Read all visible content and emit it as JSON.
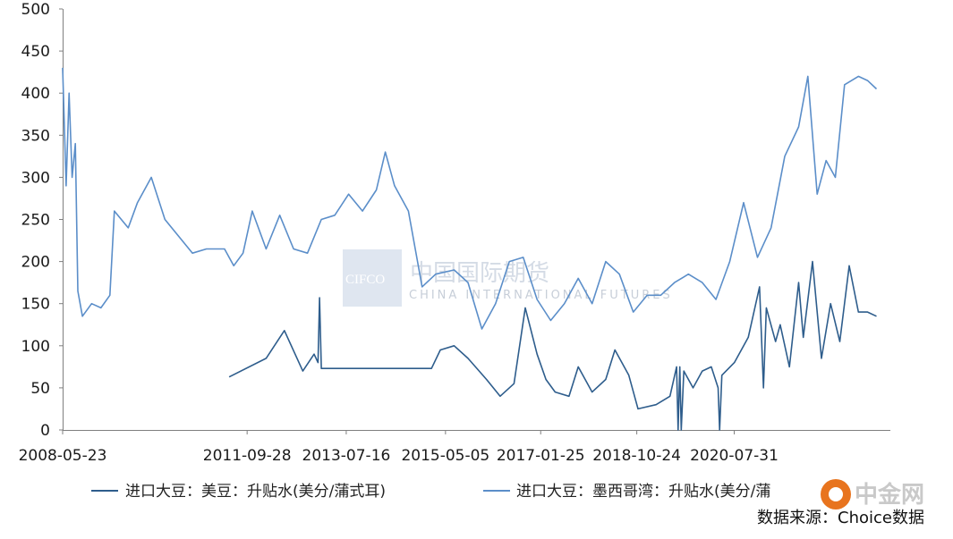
{
  "chart_data": {
    "type": "line",
    "x_tick_labels": [
      "2008-05-23",
      "2011-09-28",
      "2013-07-16",
      "2015-05-05",
      "2017-01-25",
      "2018-10-24",
      "2020-07-31"
    ],
    "y_tick_labels": [
      "0",
      "50",
      "100",
      "150",
      "200",
      "250",
      "300",
      "350",
      "400",
      "450",
      "500"
    ],
    "ylim": [
      0,
      500
    ],
    "xlim": [
      "2008-05-23",
      "2023-06-01"
    ],
    "grid": false,
    "legend_position": "bottom",
    "series": [
      {
        "name": "进口大豆：美豆：升贴水(美分/蒲式耳)",
        "color": "#2e5d8c",
        "points": [
          [
            "2011-06-01",
            63
          ],
          [
            "2012-02-01",
            85
          ],
          [
            "2012-06-01",
            118
          ],
          [
            "2012-10-01",
            70
          ],
          [
            "2012-12-15",
            90
          ],
          [
            "2013-01-10",
            80
          ],
          [
            "2013-01-20",
            157
          ],
          [
            "2013-02-01",
            73
          ],
          [
            "2015-02-01",
            73
          ],
          [
            "2015-04-01",
            95
          ],
          [
            "2015-07-01",
            100
          ],
          [
            "2015-10-01",
            85
          ],
          [
            "2016-02-01",
            60
          ],
          [
            "2016-05-01",
            40
          ],
          [
            "2016-08-01",
            55
          ],
          [
            "2016-10-15",
            145
          ],
          [
            "2017-01-01",
            90
          ],
          [
            "2017-03-01",
            60
          ],
          [
            "2017-05-01",
            45
          ],
          [
            "2017-08-01",
            40
          ],
          [
            "2017-10-01",
            75
          ],
          [
            "2018-01-01",
            45
          ],
          [
            "2018-04-01",
            60
          ],
          [
            "2018-06-01",
            95
          ],
          [
            "2018-09-01",
            65
          ],
          [
            "2018-11-01",
            25
          ],
          [
            "2019-03-01",
            30
          ],
          [
            "2019-06-01",
            40
          ],
          [
            "2019-07-15",
            75
          ],
          [
            "2019-07-25",
            0
          ],
          [
            "2019-08-05",
            75
          ],
          [
            "2019-08-15",
            0
          ],
          [
            "2019-09-01",
            70
          ],
          [
            "2019-11-01",
            50
          ],
          [
            "2020-01-01",
            70
          ],
          [
            "2020-03-01",
            75
          ],
          [
            "2020-04-15",
            50
          ],
          [
            "2020-04-25",
            0
          ],
          [
            "2020-05-10",
            65
          ],
          [
            "2020-08-01",
            80
          ],
          [
            "2020-11-01",
            110
          ],
          [
            "2021-01-15",
            170
          ],
          [
            "2021-02-10",
            50
          ],
          [
            "2021-03-01",
            145
          ],
          [
            "2021-05-01",
            105
          ],
          [
            "2021-06-01",
            125
          ],
          [
            "2021-08-01",
            75
          ],
          [
            "2021-10-01",
            175
          ],
          [
            "2021-11-01",
            110
          ],
          [
            "2022-01-01",
            200
          ],
          [
            "2022-03-01",
            85
          ],
          [
            "2022-05-01",
            150
          ],
          [
            "2022-07-01",
            105
          ],
          [
            "2022-09-01",
            195
          ],
          [
            "2022-11-01",
            140
          ],
          [
            "2023-01-01",
            140
          ],
          [
            "2023-03-01",
            135
          ]
        ]
      },
      {
        "name": "进口大豆：墨西哥湾：升贴水(美分/蒲",
        "color": "#5b8ec9",
        "points": [
          [
            "2008-05-23",
            430
          ],
          [
            "2008-06-15",
            290
          ],
          [
            "2008-07-05",
            400
          ],
          [
            "2008-07-25",
            300
          ],
          [
            "2008-08-15",
            340
          ],
          [
            "2008-09-01",
            165
          ],
          [
            "2008-10-01",
            135
          ],
          [
            "2008-12-01",
            150
          ],
          [
            "2009-02-01",
            145
          ],
          [
            "2009-04-01",
            160
          ],
          [
            "2009-05-01",
            260
          ],
          [
            "2009-08-01",
            240
          ],
          [
            "2009-10-01",
            270
          ],
          [
            "2010-01-01",
            300
          ],
          [
            "2010-04-01",
            250
          ],
          [
            "2010-07-01",
            230
          ],
          [
            "2010-10-01",
            210
          ],
          [
            "2011-01-01",
            215
          ],
          [
            "2011-05-01",
            215
          ],
          [
            "2011-07-01",
            195
          ],
          [
            "2011-09-01",
            210
          ],
          [
            "2011-11-01",
            260
          ],
          [
            "2012-02-01",
            215
          ],
          [
            "2012-05-01",
            255
          ],
          [
            "2012-08-01",
            215
          ],
          [
            "2012-11-01",
            210
          ],
          [
            "2013-02-01",
            250
          ],
          [
            "2013-05-01",
            255
          ],
          [
            "2013-08-01",
            280
          ],
          [
            "2013-11-01",
            260
          ],
          [
            "2014-02-01",
            285
          ],
          [
            "2014-04-01",
            330
          ],
          [
            "2014-06-01",
            290
          ],
          [
            "2014-09-01",
            260
          ],
          [
            "2014-12-01",
            170
          ],
          [
            "2015-03-01",
            185
          ],
          [
            "2015-07-01",
            190
          ],
          [
            "2015-10-01",
            175
          ],
          [
            "2016-01-01",
            120
          ],
          [
            "2016-04-01",
            150
          ],
          [
            "2016-07-01",
            200
          ],
          [
            "2016-10-01",
            205
          ],
          [
            "2017-01-01",
            155
          ],
          [
            "2017-04-01",
            130
          ],
          [
            "2017-07-01",
            150
          ],
          [
            "2017-10-01",
            180
          ],
          [
            "2018-01-01",
            150
          ],
          [
            "2018-04-01",
            200
          ],
          [
            "2018-07-01",
            185
          ],
          [
            "2018-10-01",
            140
          ],
          [
            "2019-01-01",
            160
          ],
          [
            "2019-04-01",
            160
          ],
          [
            "2019-07-01",
            175
          ],
          [
            "2019-10-01",
            185
          ],
          [
            "2020-01-01",
            175
          ],
          [
            "2020-04-01",
            155
          ],
          [
            "2020-07-01",
            200
          ],
          [
            "2020-10-01",
            270
          ],
          [
            "2021-01-01",
            205
          ],
          [
            "2021-04-01",
            240
          ],
          [
            "2021-07-01",
            325
          ],
          [
            "2021-10-01",
            360
          ],
          [
            "2021-12-01",
            420
          ],
          [
            "2022-02-01",
            280
          ],
          [
            "2022-04-01",
            320
          ],
          [
            "2022-06-01",
            300
          ],
          [
            "2022-08-01",
            410
          ],
          [
            "2022-11-01",
            420
          ],
          [
            "2023-01-01",
            415
          ],
          [
            "2023-03-01",
            405
          ]
        ]
      }
    ]
  },
  "legend": {
    "item1": "进口大豆：美豆：升贴水(美分/蒲式耳)",
    "item2": "进口大豆：墨西哥湾：升贴水(美分/蒲"
  },
  "source": "数据来源：Choice数据",
  "watermark": {
    "brand_latin": "CIFCO",
    "brand_cn": "中国国际期货",
    "brand_en": "CHINA INTERNATIONAL FUTURES",
    "logo_text": "中金网"
  }
}
